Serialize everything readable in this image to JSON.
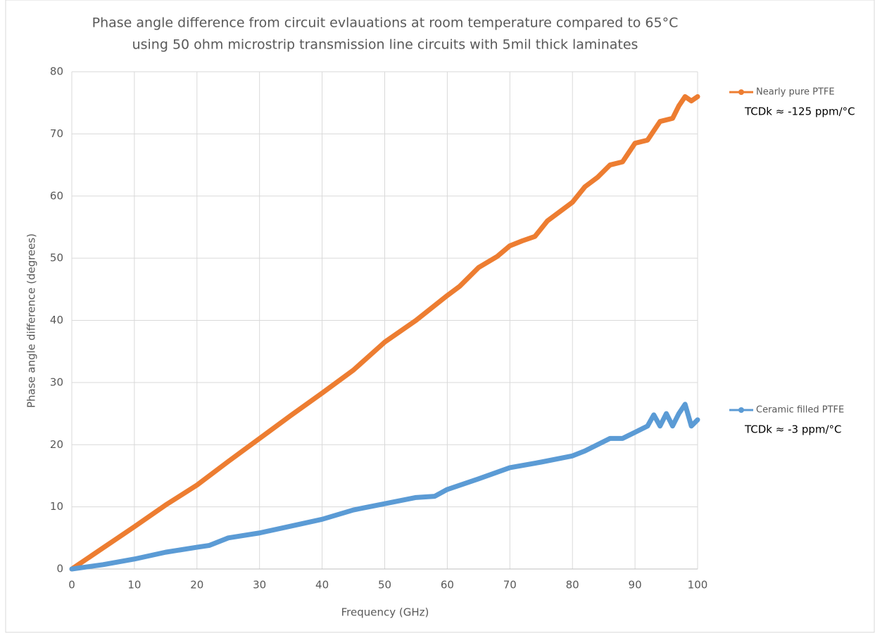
{
  "chart_data": {
    "type": "line",
    "title": [
      "Phase angle difference from circuit evlauations at room temperature compared to 65°C",
      "using 50 ohm microstrip transmission line circuits with 5mil thick laminates"
    ],
    "x_label": "Frequency (GHz)",
    "y_label": "Phase angle difference (degrees)",
    "xlim": [
      0,
      100
    ],
    "xticks": [
      0,
      10,
      20,
      30,
      40,
      50,
      60,
      70,
      80,
      90,
      100
    ],
    "ylim": [
      0,
      80
    ],
    "yticks": [
      0,
      10,
      20,
      30,
      40,
      50,
      60,
      70,
      80
    ],
    "grid": true,
    "series": [
      {
        "name": "Nearly pure PTFE",
        "color": "#ed7d31",
        "annotation": "TCDk ≈ -125 ppm/°C",
        "x": [
          0,
          5,
          10,
          15,
          20,
          25,
          30,
          35,
          40,
          45,
          50,
          55,
          60,
          62,
          65,
          68,
          70,
          72,
          74,
          76,
          78,
          80,
          82,
          84,
          86,
          88,
          90,
          92,
          94,
          96,
          97,
          98,
          99,
          100
        ],
        "values": [
          0,
          3.4,
          6.8,
          10.3,
          13.5,
          17.3,
          21,
          24.7,
          28.3,
          32,
          36.5,
          40,
          44,
          45.5,
          48.5,
          50.3,
          52,
          52.8,
          53.5,
          56,
          57.5,
          59,
          61.5,
          63,
          65,
          65.5,
          68.5,
          69,
          72,
          72.5,
          74.5,
          76,
          75.3,
          76
        ]
      },
      {
        "name": "Ceramic filled PTFE",
        "color": "#5b9bd5",
        "annotation": "TCDk ≈ -3 ppm/°C",
        "x": [
          0,
          5,
          10,
          15,
          20,
          22,
          25,
          30,
          35,
          40,
          45,
          50,
          55,
          58,
          60,
          65,
          70,
          75,
          80,
          82,
          84,
          86,
          88,
          90,
          92,
          93,
          94,
          95,
          96,
          97,
          98,
          99,
          100
        ],
        "values": [
          0,
          0.7,
          1.6,
          2.7,
          3.5,
          3.8,
          5,
          5.8,
          6.9,
          8,
          9.5,
          10.5,
          11.5,
          11.7,
          12.8,
          14.5,
          16.3,
          17.2,
          18.2,
          19,
          20,
          21,
          21,
          22,
          23,
          24.8,
          23,
          25,
          23,
          25,
          26.5,
          23,
          24
        ]
      }
    ]
  }
}
